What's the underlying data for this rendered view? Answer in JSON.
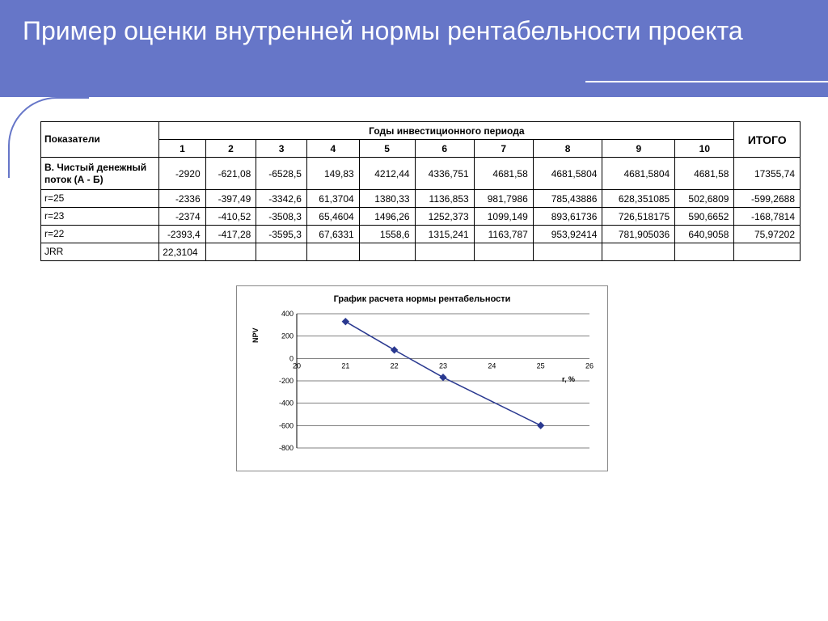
{
  "title": "Пример оценки внутренней нормы рентабельности проекта",
  "colors": {
    "header_bg": "#6676c8",
    "header_text": "#ffffff",
    "table_border": "#000000",
    "chart_line": "#2a3990",
    "chart_marker": "#2a3990",
    "grid": "#000000",
    "page_bg": "#ffffff"
  },
  "table": {
    "col_indicators": "Показатели",
    "col_years_span": "Годы инвестиционного периода",
    "col_total": "ИТОГО",
    "years": [
      "1",
      "2",
      "3",
      "4",
      "5",
      "6",
      "7",
      "8",
      "9",
      "10"
    ],
    "rows": [
      {
        "label": "В. Чистый денежный поток (А - Б)",
        "bold": true,
        "cells": [
          "-2920",
          "-621,08",
          "-6528,5",
          "149,83",
          "4212,44",
          "4336,751",
          "4681,58",
          "4681,5804",
          "4681,5804",
          "4681,58"
        ],
        "total": "17355,74"
      },
      {
        "label": "r=25",
        "bold": false,
        "cells": [
          "-2336",
          "-397,49",
          "-3342,6",
          "61,3704",
          "1380,33",
          "1136,853",
          "981,7986",
          "785,43886",
          "628,351085",
          "502,6809"
        ],
        "total": "-599,2688"
      },
      {
        "label": "r=23",
        "bold": false,
        "cells": [
          "-2374",
          "-410,52",
          "-3508,3",
          "65,4604",
          "1496,26",
          "1252,373",
          "1099,149",
          "893,61736",
          "726,518175",
          "590,6652"
        ],
        "total": "-168,7814"
      },
      {
        "label": "r=22",
        "bold": false,
        "cells": [
          "-2393,4",
          "-417,28",
          "-3595,3",
          "67,6331",
          "1558,6",
          "1315,241",
          "1163,787",
          "953,92414",
          "781,905036",
          "640,9058"
        ],
        "total": "75,97202"
      },
      {
        "label": "JRR",
        "bold": false,
        "cells": [
          "22,3104",
          "",
          "",
          "",
          "",
          "",
          "",
          "",
          "",
          ""
        ],
        "total": ""
      }
    ]
  },
  "chart": {
    "title": "График расчета нормы рентабельности",
    "ylabel": "NPV",
    "xlabel": "r, %",
    "type": "line",
    "xlim": [
      20,
      26
    ],
    "ylim": [
      -800,
      400
    ],
    "xticks": [
      20,
      21,
      22,
      23,
      24,
      25,
      26
    ],
    "yticks": [
      -800,
      -600,
      -400,
      -200,
      0,
      200,
      400
    ],
    "line_color": "#2a3990",
    "marker_color": "#2a3990",
    "marker_size": 4,
    "line_width": 1.5,
    "grid_color": "#000000",
    "background_color": "#ffffff",
    "title_fontsize": 11,
    "label_fontsize": 9,
    "tick_fontsize": 9,
    "points": [
      {
        "x": 21,
        "y": 330
      },
      {
        "x": 22,
        "y": 76
      },
      {
        "x": 23,
        "y": -169
      },
      {
        "x": 25,
        "y": -599
      }
    ]
  }
}
